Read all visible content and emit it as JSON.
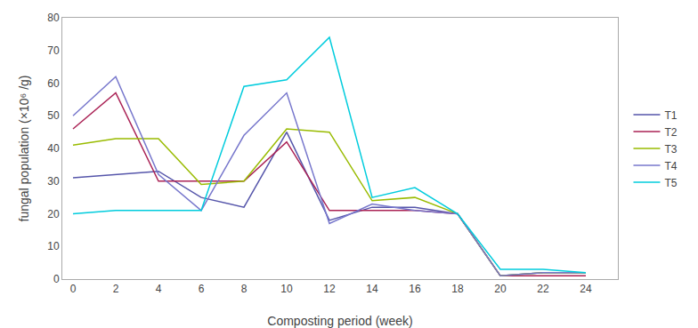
{
  "chart_data": {
    "type": "line",
    "x": [
      0,
      2,
      4,
      6,
      8,
      10,
      12,
      14,
      16,
      18,
      20,
      22,
      24
    ],
    "series": [
      {
        "name": "T1",
        "color": "#5555aa",
        "values": [
          31,
          32,
          33,
          25,
          22,
          45,
          18,
          22,
          22,
          20,
          1,
          2,
          2
        ]
      },
      {
        "name": "T2",
        "color": "#aa2255",
        "values": [
          46,
          57,
          30,
          30,
          30,
          42,
          21,
          21,
          21,
          20,
          1,
          1,
          1
        ]
      },
      {
        "name": "T3",
        "color": "#99bb00",
        "values": [
          41,
          43,
          43,
          29,
          30,
          46,
          45,
          24,
          25,
          20,
          1,
          2,
          2
        ]
      },
      {
        "name": "T4",
        "color": "#7777cc",
        "values": [
          50,
          62,
          32,
          21,
          44,
          57,
          17,
          23,
          21,
          20,
          1,
          2,
          2
        ]
      },
      {
        "name": "T5",
        "color": "#00ccdd",
        "values": [
          20,
          21,
          21,
          21,
          59,
          61,
          74,
          25,
          28,
          20,
          3,
          3,
          2
        ]
      }
    ],
    "xlabel": "Composting period (week)",
    "ylabel": "fungal population (×10⁶ /g)",
    "xlim": [
      -0.5,
      25.5
    ],
    "xticks": [
      0,
      2,
      4,
      6,
      8,
      10,
      12,
      14,
      16,
      18,
      20,
      22,
      24
    ],
    "ylim": [
      0,
      80
    ],
    "yticks": [
      0,
      10,
      20,
      30,
      40,
      50,
      60,
      70,
      80
    ],
    "grid": false,
    "legend": "right"
  }
}
